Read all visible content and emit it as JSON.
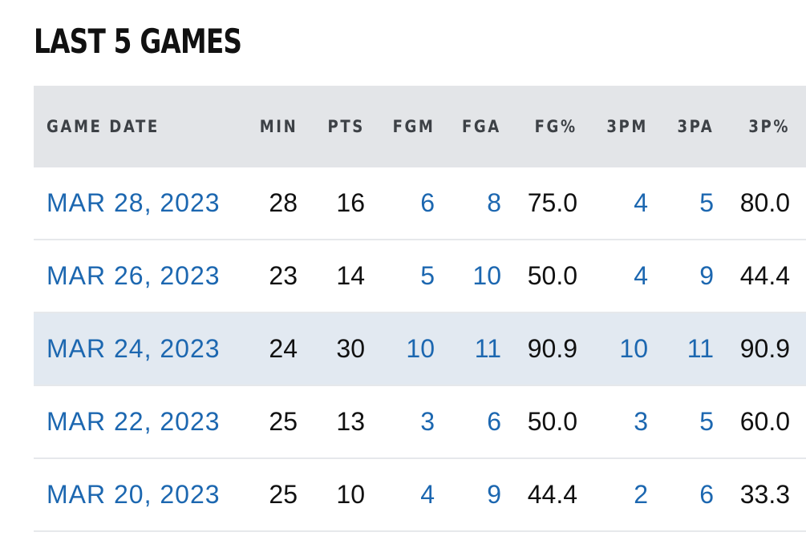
{
  "title": "LAST 5 GAMES",
  "columns": {
    "game_date": "GAME DATE",
    "min": "MIN",
    "pts": "PTS",
    "fgm": "FGM",
    "fga": "FGA",
    "fg_pct": "FG%",
    "three_pm": "3PM",
    "three_pa": "3PA",
    "three_pct": "3P%"
  },
  "rows": [
    {
      "date": "MAR 28, 2023",
      "min": "28",
      "pts": "16",
      "fgm": "6",
      "fga": "8",
      "fg_pct": "75.0",
      "three_pm": "4",
      "three_pa": "5",
      "three_pct": "80.0"
    },
    {
      "date": "MAR 26, 2023",
      "min": "23",
      "pts": "14",
      "fgm": "5",
      "fga": "10",
      "fg_pct": "50.0",
      "three_pm": "4",
      "three_pa": "9",
      "three_pct": "44.4"
    },
    {
      "date": "MAR 24, 2023",
      "min": "24",
      "pts": "30",
      "fgm": "10",
      "fga": "11",
      "fg_pct": "90.9",
      "three_pm": "10",
      "three_pa": "11",
      "three_pct": "90.9"
    },
    {
      "date": "MAR 22, 2023",
      "min": "25",
      "pts": "13",
      "fgm": "3",
      "fga": "6",
      "fg_pct": "50.0",
      "three_pm": "3",
      "three_pa": "5",
      "three_pct": "60.0"
    },
    {
      "date": "MAR 20, 2023",
      "min": "25",
      "pts": "10",
      "fgm": "4",
      "fga": "9",
      "fg_pct": "44.4",
      "three_pm": "2",
      "three_pa": "6",
      "three_pct": "33.3"
    }
  ],
  "highlighted_row": 2,
  "colors": {
    "link": "#1c67b0",
    "header_bg": "#e3e5e8",
    "highlight_bg": "#e2e9f1",
    "text": "#111111"
  }
}
